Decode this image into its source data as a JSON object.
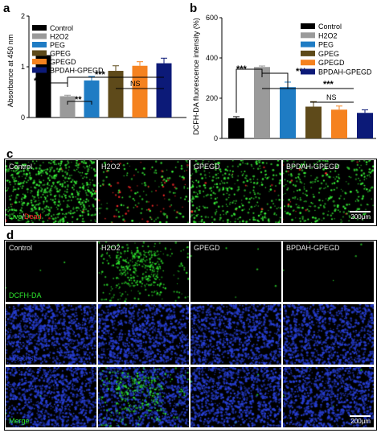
{
  "panels": {
    "a": "a",
    "b": "b",
    "c": "c",
    "d": "d"
  },
  "chart_data": [
    {
      "type": "bar",
      "ylabel": "Absorbance at 450 nm",
      "ylim": [
        0,
        2
      ],
      "yticks": [
        "0",
        "1",
        "2"
      ],
      "categories": [
        "Control",
        "H2O2",
        "PEG",
        "GPEG",
        "GPEGD",
        "BPDAH-GPEGD"
      ],
      "values": [
        1.23,
        0.42,
        0.73,
        0.92,
        1.02,
        1.07
      ],
      "errors": [
        0.04,
        0.02,
        0.08,
        0.1,
        0.08,
        0.1
      ],
      "colors": [
        "#000000",
        "#9a9a9a",
        "#1f7cc4",
        "#5e4a1a",
        "#f5821f",
        "#0c1a78"
      ],
      "legend_position": "top-right",
      "significance": [
        {
          "label": "***",
          "between": [
            "Control",
            "H2O2"
          ]
        },
        {
          "label": "**",
          "between": [
            "H2O2",
            "PEG"
          ]
        },
        {
          "label": "***",
          "between": [
            "H2O2",
            "GPEG-BPDAH-GPEGD"
          ]
        },
        {
          "label": "NS",
          "between": [
            "GPEG",
            "BPDAH-GPEGD"
          ]
        }
      ]
    },
    {
      "type": "bar",
      "ylabel": "DCFH-DA fluorescence intensity  (%)",
      "ylim": [
        0,
        600
      ],
      "yticks": [
        "0",
        "200",
        "400",
        "600"
      ],
      "categories": [
        "Control",
        "H2O2",
        "PEG",
        "GPEG",
        "GPEGD",
        "BPDAH-GPEGD"
      ],
      "values": [
        100,
        355,
        255,
        158,
        143,
        127
      ],
      "errors": [
        8,
        5,
        25,
        25,
        18,
        15
      ],
      "colors": [
        "#000000",
        "#9a9a9a",
        "#1f7cc4",
        "#5e4a1a",
        "#f5821f",
        "#0c1a78"
      ],
      "legend_position": "top-right",
      "significance": [
        {
          "label": "***",
          "between": [
            "Control",
            "H2O2"
          ]
        },
        {
          "label": "***",
          "between": [
            "H2O2",
            "PEG"
          ]
        },
        {
          "label": "***",
          "between": [
            "H2O2",
            "GPEG-BPDAH-GPEGD"
          ]
        },
        {
          "label": "NS",
          "between": [
            "GPEG",
            "BPDAH-GPEGD"
          ]
        }
      ]
    }
  ],
  "legend": {
    "control": "Control",
    "h2o2": "H2O2",
    "peg": "PEG",
    "gpeg": "GPEG",
    "gpegd": "GPEGD",
    "bpdah": "BPDAH-GPEGD"
  },
  "stars": {
    "three": "***",
    "two": "**",
    "ns": "NS"
  },
  "panel_c": {
    "columns": [
      "Control",
      "H2O2",
      "GPEGD",
      "BPDAH-GPEGD"
    ],
    "stain_live": "Live",
    "stain_sep": "/",
    "stain_dead": "Dead",
    "scale": "200μm",
    "colors": {
      "live": "#3cff3c",
      "dead": "#ff2a2a"
    }
  },
  "panel_d": {
    "columns": [
      "Control",
      "H2O2",
      "GPEGD",
      "BPDAH-GPEGD"
    ],
    "rows": [
      "DCFH-DA",
      "Hoechst",
      "Merge"
    ],
    "scale": "200μm",
    "colors": {
      "dcfh": "#2ee62e",
      "hoechst": "#2840d8"
    }
  }
}
